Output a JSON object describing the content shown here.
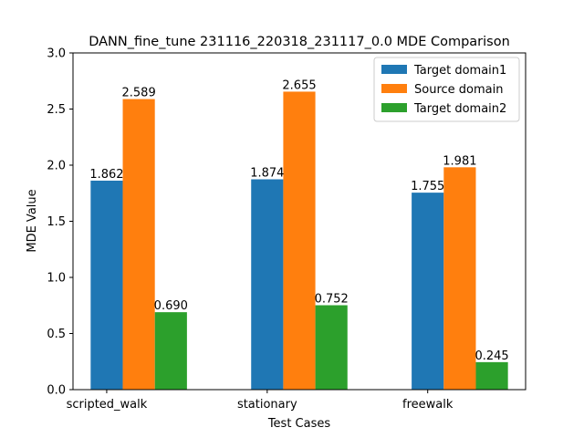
{
  "chart_data": {
    "type": "bar",
    "title": "DANN_fine_tune 231116_220318_231117_0.0 MDE Comparison",
    "xlabel": "Test Cases",
    "ylabel": "MDE Value",
    "ylim": [
      0,
      3.0
    ],
    "yticks": [
      "0.0",
      "0.5",
      "1.0",
      "1.5",
      "2.0",
      "2.5",
      "3.0"
    ],
    "categories": [
      "scripted_walk",
      "stationary",
      "freewalk"
    ],
    "series": [
      {
        "name": "Target domain1",
        "color": "#1f77b4",
        "values": [
          1.862,
          1.874,
          1.755
        ],
        "labels": [
          "1.862",
          "1.874",
          "1.755"
        ]
      },
      {
        "name": "Source domain",
        "color": "#ff7f0e",
        "values": [
          2.589,
          2.655,
          1.981
        ],
        "labels": [
          "2.589",
          "2.655",
          "1.981"
        ]
      },
      {
        "name": "Target domain2",
        "color": "#2ca02c",
        "values": [
          0.69,
          0.752,
          0.245
        ],
        "labels": [
          "0.690",
          "0.752",
          "0.245"
        ]
      }
    ],
    "grid": false,
    "legend_position": "top-right"
  }
}
